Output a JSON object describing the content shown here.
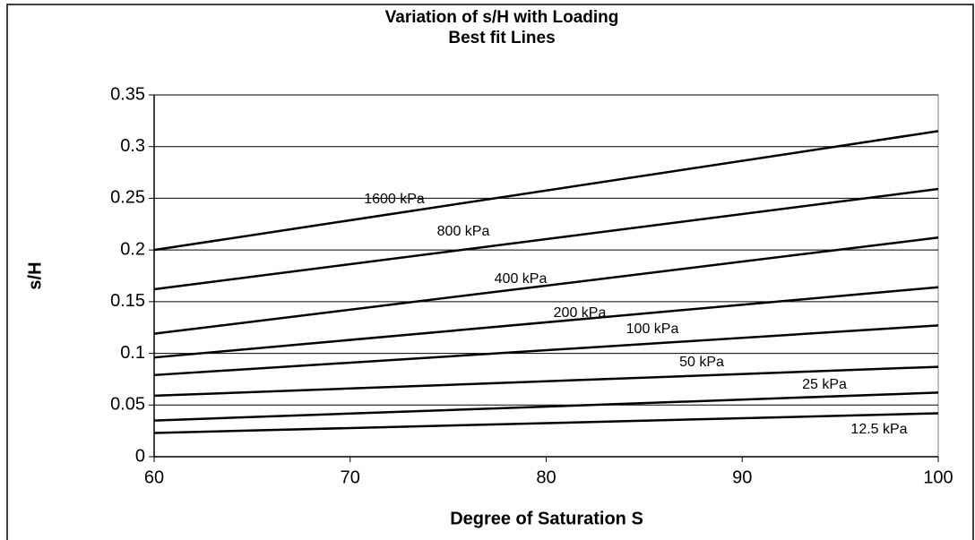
{
  "chart_data": {
    "type": "line",
    "title": "Variation of s/H with Loading",
    "subtitle": "Best fit Lines",
    "x_label": "Degree of Saturation S",
    "y_label": "s/H",
    "x": [
      60,
      100
    ],
    "series": [
      {
        "name": "1600 kPa",
        "color": "#000000",
        "values": [
          0.2,
          0.315
        ]
      },
      {
        "name": "800 kPa",
        "color": "#000000",
        "values": [
          0.162,
          0.259
        ]
      },
      {
        "name": "400 kPa",
        "color": "#000000",
        "values": [
          0.119,
          0.212
        ]
      },
      {
        "name": "200 kPa",
        "color": "#000000",
        "values": [
          0.096,
          0.164
        ]
      },
      {
        "name": "100 kPa",
        "color": "#000000",
        "values": [
          0.079,
          0.127
        ]
      },
      {
        "name": "50 kPa",
        "color": "#000000",
        "values": [
          0.059,
          0.087
        ]
      },
      {
        "name": "25 kPa",
        "color": "#000000",
        "values": [
          0.035,
          0.062
        ]
      },
      {
        "name": "12.5 kPa",
        "color": "#000000",
        "values": [
          0.023,
          0.042
        ]
      }
    ],
    "xlim": [
      60,
      100
    ],
    "xticks": [
      60,
      70,
      80,
      90,
      100
    ],
    "ylim": [
      0,
      0.35
    ],
    "yticks": [
      0,
      0.05,
      0.1,
      0.15,
      0.2,
      0.25,
      0.3,
      0.35
    ],
    "grid": true
  }
}
